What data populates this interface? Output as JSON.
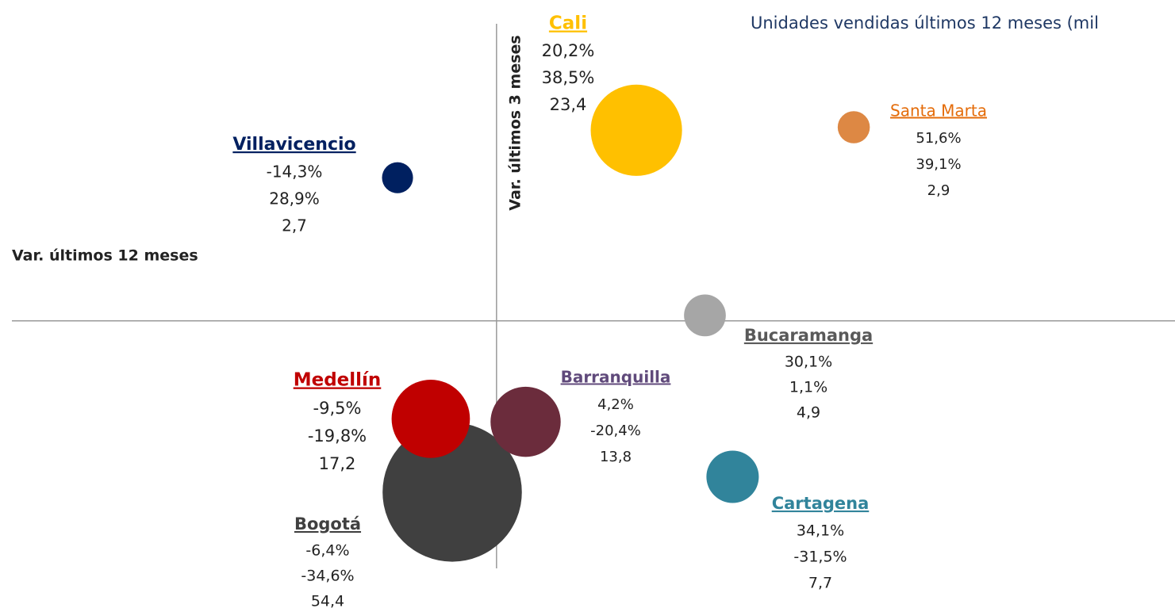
{
  "chart_data": {
    "type": "bubble",
    "x_axis_label": "Var. últimos 12 meses",
    "y_axis_label": "Var. últimos 3 meses",
    "annotation": "Unidades vendidas últimos 12 meses (mil",
    "categories": [
      "Bogotá",
      "Medellín",
      "Cali",
      "Villavicencio",
      "Santa Marta",
      "Bucaramanga",
      "Barranquilla",
      "Cartagena"
    ],
    "x": [
      -6.4,
      -9.5,
      20.2,
      -14.3,
      51.6,
      30.1,
      4.2,
      34.1
    ],
    "x_labels": [
      "-6,4%",
      "-9,5%",
      "20,2%",
      "-14,3%",
      "51,6%",
      "30,1%",
      "4,2%",
      "34,1%"
    ],
    "values": [
      -34.6,
      -19.8,
      38.5,
      28.9,
      39.1,
      1.1,
      -20.4,
      -31.5
    ],
    "value_labels": [
      "-34,6%",
      "-19,8%",
      "38,5%",
      "28,9%",
      "39,1%",
      "1,1%",
      "-20,4%",
      "-31,5%"
    ],
    "sizes": [
      54.4,
      17.2,
      23.4,
      2.7,
      2.9,
      4.9,
      13.8,
      7.7
    ],
    "size_labels": [
      "54,4",
      "17,2",
      "23,4",
      "2,7",
      "2,9",
      "4,9",
      "13,8",
      "7,7"
    ],
    "colors": [
      "#404040",
      "#c00000",
      "#ffc000",
      "#002060",
      "#dd8844",
      "#a6a6a6",
      "#6b2c3c",
      "#31849b"
    ],
    "label_colors": [
      "#404040",
      "#c00000",
      "#ffc000",
      "#002060",
      "#e46c0a",
      "#595959",
      "#604a7b",
      "#31849b"
    ],
    "xlim": [
      -70,
      98
    ],
    "ylim": [
      -50,
      60
    ]
  }
}
